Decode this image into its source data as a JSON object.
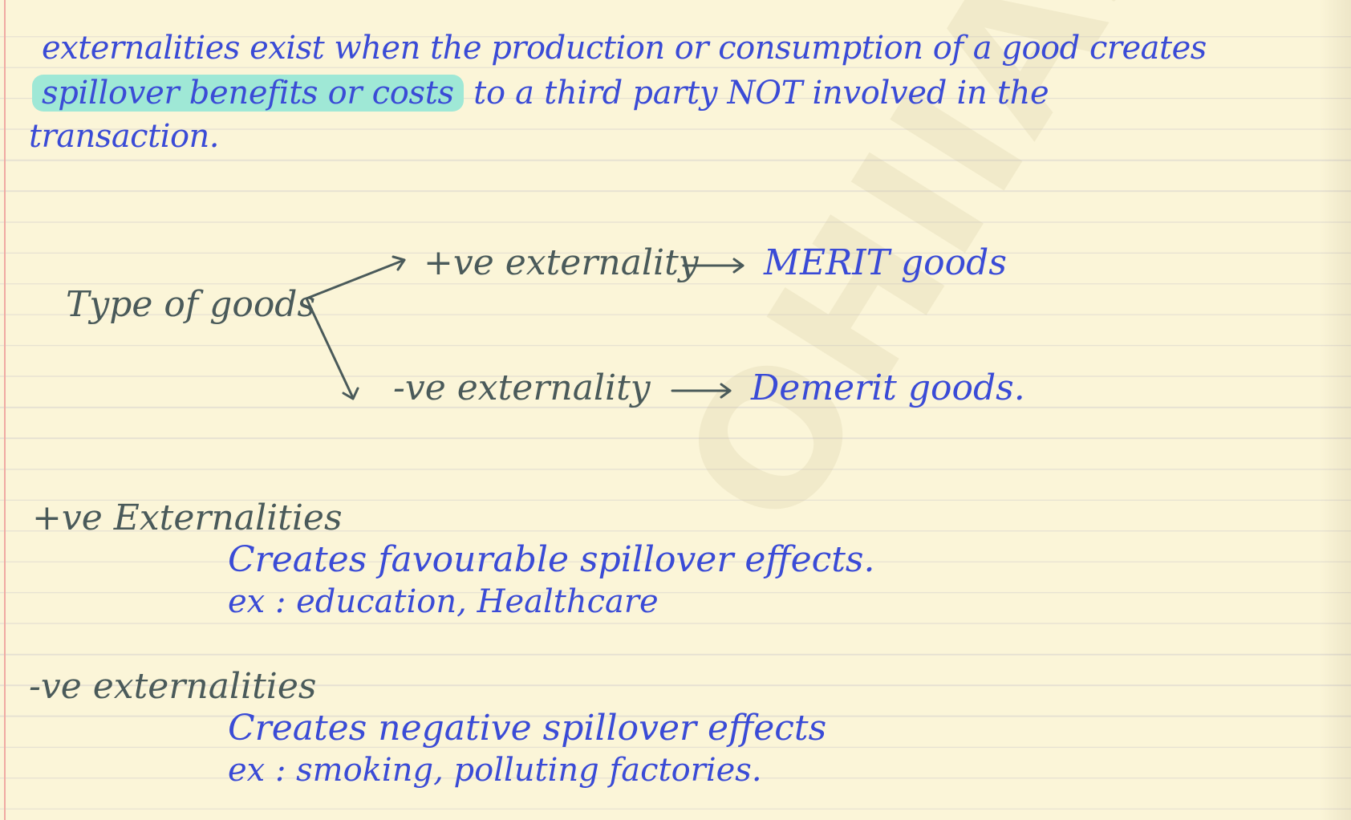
{
  "watermark": "OHIIAS",
  "definition": {
    "line1": "externalities exist when the production or consumption of a good creates",
    "highlight": "spillover benefits or costs",
    "line2_rest": " to a third party NOT involved in the",
    "line3": "transaction."
  },
  "diagram": {
    "root": "Type of goods",
    "positive": "+ve externality",
    "positive_result": "MERIT goods",
    "negative": "-ve externality",
    "negative_result": "Demerit goods."
  },
  "positive_section": {
    "heading": "+ve Externalities",
    "description": "Creates favourable spillover effects.",
    "example": "ex :  education, Healthcare"
  },
  "negative_section": {
    "heading": "-ve externalities",
    "description": "Creates negative spillover effects",
    "example": "ex :  smoking, polluting factories."
  },
  "colors": {
    "ink_blue": "#3a4bd6",
    "ink_grey": "#4a5a5a",
    "highlight": "#9fe8d6",
    "paper": "#fbf5d8"
  }
}
